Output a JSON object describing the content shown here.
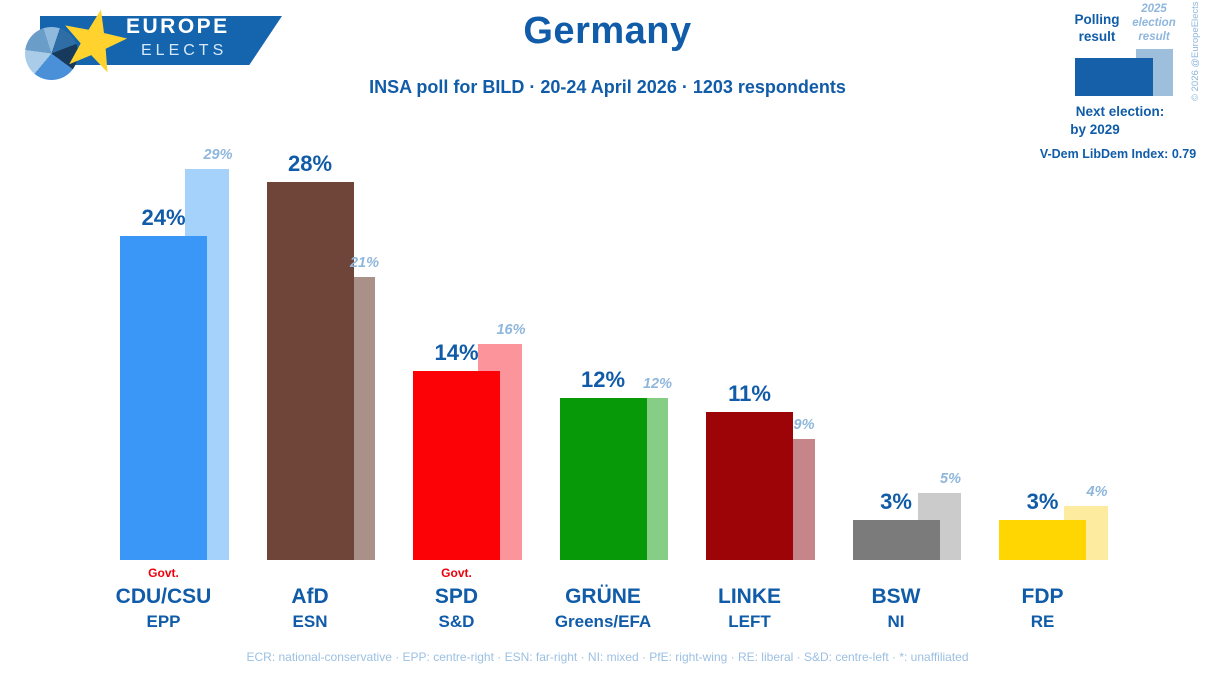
{
  "page": {
    "title": "Germany",
    "subtitle": "INSA poll for BILD · 20-24 April 2026 · 1203 respondents"
  },
  "logo": {
    "line1": "EUROPE",
    "line2": "ELECTS"
  },
  "legend": {
    "polling_label": "Polling result",
    "election_label": "2025 election result",
    "copyright": "© 2026 @EuropeElects",
    "next_election_label": "Next election:",
    "next_election_value": "by 2029",
    "vdem_label": "V-Dem LibDem Index: 0.79"
  },
  "footnote": "ECR: national-conservative · EPP: centre-right · ESN: far-right · NI: mixed · PfE: right-wing · RE: liberal · S&D: centre-left · *: unaffiliated",
  "colors": {
    "accent_blue": "#115ca8",
    "light_label_blue": "#8fb7dc",
    "footnote_blue": "#9cc0e2",
    "govt_red": "#ed000b",
    "legend_polling_bar": "#1560a8",
    "legend_election_bar": "#9dbfdb",
    "logo_banner": "#1565ae",
    "logo_star": "#ffd22e"
  },
  "chart_data": {
    "type": "bar",
    "title": "Germany",
    "subtitle": "INSA poll for BILD · 20-24 April 2026 · 1203 respondents",
    "unit": "%",
    "ylim": [
      0,
      30
    ],
    "grid": false,
    "series_names": [
      "Polling result",
      "2025 election result"
    ],
    "govt_label": "Govt.",
    "parties": [
      {
        "name": "CDU/CSU",
        "group": "EPP",
        "polling_pct": 24,
        "election_pct": 29,
        "color": "#3a97f8",
        "election_color": "#a5d2fb",
        "govt": true
      },
      {
        "name": "AfD",
        "group": "ESN",
        "polling_pct": 28,
        "election_pct": 21,
        "color": "#6f4539",
        "election_color": "#a9918a",
        "govt": false
      },
      {
        "name": "SPD",
        "group": "S&D",
        "polling_pct": 14,
        "election_pct": 16,
        "color": "#fc0207",
        "election_color": "#fb959b",
        "govt": true
      },
      {
        "name": "GRÜNE",
        "group": "Greens/EFA",
        "polling_pct": 12,
        "election_pct": 12,
        "color": "#079907",
        "election_color": "#86ce86",
        "govt": false
      },
      {
        "name": "LINKE",
        "group": "LEFT",
        "polling_pct": 11,
        "election_pct": 9,
        "color": "#9d0407",
        "election_color": "#c58589",
        "govt": false
      },
      {
        "name": "BSW",
        "group": "NI",
        "polling_pct": 3,
        "election_pct": 5,
        "color": "#7b7b7b",
        "election_color": "#cbcbcb",
        "govt": false
      },
      {
        "name": "FDP",
        "group": "RE",
        "polling_pct": 3,
        "election_pct": 4,
        "color": "#ffd502",
        "election_color": "#fdec9f",
        "govt": false
      }
    ]
  }
}
